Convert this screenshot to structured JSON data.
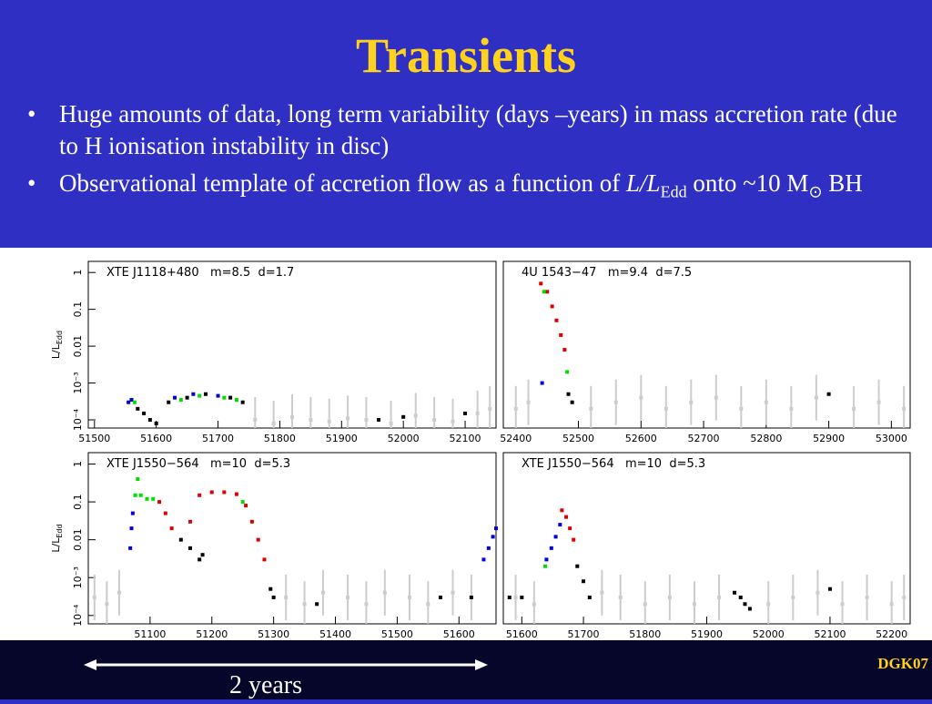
{
  "title": "Transients",
  "bullets": [
    {
      "parts": [
        "Huge amounts of data, long term variability (days –years) in mass accretion rate (due to H ionisation instability in disc)"
      ]
    },
    {
      "parts": [
        "Observational template of accretion flow as a function  of",
        "L/L",
        "Edd",
        "onto ~10 M",
        "⊙",
        "BH"
      ]
    }
  ],
  "footer": {
    "span_label": "2 years",
    "credit": "DGK07"
  },
  "chart_data": [
    {
      "type": "scatter",
      "label": "XTE J1118+480   m=8.5  d=1.7",
      "y_label": {
        "main": "L/L",
        "sub": "Edd"
      },
      "log_y": true,
      "xlim": [
        51490,
        52150
      ],
      "ylim": [
        6e-05,
        2
      ],
      "xticks": [
        51500,
        51600,
        51700,
        51800,
        51900,
        52000,
        52100
      ],
      "yticks": [
        {
          "value": 0.0001,
          "label": "10⁻⁴"
        },
        {
          "value": 0.001,
          "label": "10⁻³"
        },
        0.01,
        0.1,
        1
      ],
      "series": [
        {
          "color": "#cccccc",
          "x": [
            51760,
            51790,
            51820,
            51850,
            51880,
            51910,
            51940,
            51980,
            52020,
            52050,
            52080,
            52120,
            52140
          ],
          "values": [
            0.0001,
            8e-05,
            0.00012,
            0.0001,
            9e-05,
            0.00011,
            0.0001,
            8e-05,
            0.00013,
            0.0001,
            9e-05,
            0.00015,
            0.0002
          ]
        },
        {
          "color": "#0000dd",
          "x": [
            51555,
            51560,
            51630,
            51660,
            51700
          ],
          "values": [
            0.0003,
            0.00035,
            0.0004,
            0.0005,
            0.00045
          ]
        },
        {
          "color": "#00dd00",
          "x": [
            51565,
            51640,
            51670,
            51710,
            51730
          ],
          "values": [
            0.0003,
            0.00035,
            0.00045,
            0.0004,
            0.00035
          ]
        },
        {
          "color": "#000000",
          "x": [
            51570,
            51580,
            51590,
            51600,
            51620,
            51650,
            51680,
            51720,
            51740,
            51960,
            52000,
            52100
          ],
          "values": [
            0.0002,
            0.00015,
            0.0001,
            8e-05,
            0.0003,
            0.0004,
            0.0005,
            0.0004,
            0.0003,
            0.0001,
            0.00012,
            0.00015
          ]
        }
      ]
    },
    {
      "type": "scatter",
      "label": "4U 1543−47   m=9.4  d=7.5",
      "log_y": true,
      "xlim": [
        52380,
        53030
      ],
      "ylim": [
        6e-05,
        2
      ],
      "xticks": [
        52400,
        52500,
        52600,
        52700,
        52800,
        52900,
        53000
      ],
      "series": [
        {
          "color": "#cccccc",
          "x": [
            52400,
            52420,
            52520,
            52560,
            52600,
            52640,
            52680,
            52720,
            52760,
            52800,
            52840,
            52880,
            52940,
            52980,
            53020
          ],
          "values": [
            0.0002,
            0.0003,
            0.0002,
            0.0003,
            0.0004,
            0.0002,
            0.0003,
            0.0004,
            0.0002,
            0.0003,
            0.0002,
            0.0004,
            0.0002,
            0.0003,
            0.0002
          ]
        },
        {
          "color": "#dd0000",
          "x": [
            52440,
            52450,
            52458,
            52465,
            52472,
            52478
          ],
          "values": [
            0.5,
            0.3,
            0.12,
            0.05,
            0.02,
            0.008
          ]
        },
        {
          "color": "#00dd00",
          "x": [
            52445,
            52482
          ],
          "values": [
            0.3,
            0.002
          ]
        },
        {
          "color": "#0000dd",
          "x": [
            52442
          ],
          "values": [
            0.001
          ]
        },
        {
          "color": "#000000",
          "x": [
            52484,
            52490,
            52900
          ],
          "values": [
            0.0005,
            0.0003,
            0.0005
          ]
        }
      ]
    },
    {
      "type": "scatter",
      "label": "XTE J1550−564   m=10  d=5.3",
      "y_label": {
        "main": "L/L",
        "sub": "Edd"
      },
      "log_y": true,
      "xlim": [
        51000,
        51660
      ],
      "ylim": [
        6e-05,
        2
      ],
      "xticks": [
        51100,
        51200,
        51300,
        51400,
        51500,
        51600
      ],
      "yticks": [
        {
          "value": 0.0001,
          "label": "10⁻⁴"
        },
        {
          "value": 0.001,
          "label": "10⁻³"
        },
        0.01,
        0.1,
        1
      ],
      "series": [
        {
          "color": "#cccccc",
          "x": [
            51010,
            51030,
            51050,
            51320,
            51350,
            51380,
            51420,
            51450,
            51480,
            51520,
            51550,
            51590,
            51620
          ],
          "values": [
            0.0003,
            0.0002,
            0.0004,
            0.0003,
            0.0002,
            0.0004,
            0.0003,
            0.0002,
            0.0004,
            0.0003,
            0.0002,
            0.0004,
            0.0003
          ]
        },
        {
          "color": "#0000dd",
          "x": [
            51068,
            51070,
            51072,
            51640,
            51648,
            51655,
            51660
          ],
          "values": [
            0.006,
            0.02,
            0.05,
            0.003,
            0.006,
            0.012,
            0.02
          ]
        },
        {
          "color": "#00dd00",
          "x": [
            51076,
            51080,
            51085,
            51095,
            51105,
            51250
          ],
          "values": [
            0.15,
            0.4,
            0.15,
            0.12,
            0.12,
            0.1
          ]
        },
        {
          "color": "#dd0000",
          "x": [
            51115,
            51125,
            51135,
            51165,
            51180,
            51200,
            51220,
            51240,
            51255,
            51265,
            51275,
            51285
          ],
          "values": [
            0.1,
            0.05,
            0.02,
            0.03,
            0.15,
            0.18,
            0.18,
            0.16,
            0.08,
            0.03,
            0.01,
            0.003
          ]
        },
        {
          "color": "#000000",
          "x": [
            51150,
            51165,
            51180,
            51185,
            51295,
            51300,
            51370,
            51570,
            51620
          ],
          "values": [
            0.01,
            0.006,
            0.003,
            0.004,
            0.0005,
            0.0003,
            0.0002,
            0.0003,
            0.0003
          ]
        }
      ]
    },
    {
      "type": "scatter",
      "label": "XTE J1550−564   m=10  d=5.3",
      "log_y": true,
      "xlim": [
        51570,
        52230
      ],
      "ylim": [
        6e-05,
        2
      ],
      "xticks": [
        51600,
        51700,
        51800,
        51900,
        52000,
        52100,
        52200
      ],
      "series": [
        {
          "color": "#cccccc",
          "x": [
            51590,
            51620,
            51730,
            51760,
            51800,
            51840,
            51880,
            51920,
            52000,
            52040,
            52080,
            52120,
            52160,
            52200,
            52220
          ],
          "values": [
            0.0003,
            0.0002,
            0.0004,
            0.0003,
            0.0002,
            0.0003,
            0.0002,
            0.0003,
            0.0002,
            0.0003,
            0.0004,
            0.0002,
            0.0003,
            0.0002,
            0.0003
          ]
        },
        {
          "color": "#0000dd",
          "x": [
            51640,
            51648,
            51655,
            51662
          ],
          "values": [
            0.003,
            0.006,
            0.012,
            0.025
          ]
        },
        {
          "color": "#00dd00",
          "x": [
            51638
          ],
          "values": [
            0.002
          ]
        },
        {
          "color": "#dd0000",
          "x": [
            51665,
            51672,
            51678,
            51684
          ],
          "values": [
            0.06,
            0.04,
            0.02,
            0.01
          ]
        },
        {
          "color": "#000000",
          "x": [
            51580,
            51600,
            51690,
            51700,
            51710,
            51945,
            51955,
            51962,
            51970,
            52100
          ],
          "values": [
            0.0003,
            0.0003,
            0.002,
            0.0008,
            0.0003,
            0.0004,
            0.0003,
            0.0002,
            0.00015,
            0.0005
          ]
        }
      ]
    }
  ]
}
